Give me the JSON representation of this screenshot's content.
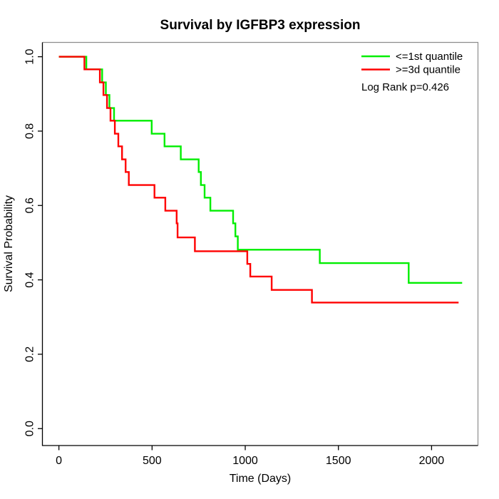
{
  "title": "Survival by IGFBP3 expression",
  "legend": {
    "items": [
      {
        "label": "<=1st quantile",
        "color": "#00EE00"
      },
      {
        "label": ">=3d quantile",
        "color": "#FF0000"
      }
    ],
    "stat_label": "Log Rank p=0.426"
  },
  "chart_data": {
    "type": "line",
    "subtype": "kaplan-meier-step-curve",
    "title": "Survival by IGFBP3 expression",
    "xlabel": "Time (Days)",
    "ylabel": "Survival Probability",
    "xlim": [
      -88.5,
      2249
    ],
    "ylim": [
      -0.0455,
      1.0385
    ],
    "x_ticks": {
      "values": [
        0,
        500,
        1000,
        1500,
        2000
      ],
      "labels": [
        "0",
        "500",
        "1000",
        "1500",
        "2000"
      ]
    },
    "y_ticks": {
      "values": [
        0,
        0.2,
        0.4,
        0.6,
        0.8,
        1
      ],
      "labels": [
        "0.0",
        "0.2",
        "0.4",
        "0.6",
        "0.8",
        "1.0"
      ]
    },
    "grid": false,
    "legend_position": "top-right",
    "annotation": "Log Rank p=0.426",
    "series": [
      {
        "name": "<=1st quantile",
        "color": "#00EE00",
        "start": [
          0,
          1.0
        ],
        "steps": [
          [
            147,
            0.966
          ],
          [
            232,
            0.931
          ],
          [
            252,
            0.897
          ],
          [
            271,
            0.862
          ],
          [
            296,
            0.828
          ],
          [
            498,
            0.793
          ],
          [
            567,
            0.759
          ],
          [
            654,
            0.724
          ],
          [
            750,
            0.69
          ],
          [
            762,
            0.655
          ],
          [
            782,
            0.621
          ],
          [
            813,
            0.586
          ],
          [
            935,
            0.552
          ],
          [
            947,
            0.517
          ],
          [
            960,
            0.481
          ],
          [
            1400,
            0.445
          ],
          [
            1877,
            0.392
          ]
        ],
        "end_time": 2164
      },
      {
        "name": ">=3d quantile",
        "color": "#FF0000",
        "start": [
          0,
          1.0
        ],
        "steps": [
          [
            137,
            0.966
          ],
          [
            220,
            0.931
          ],
          [
            239,
            0.897
          ],
          [
            258,
            0.862
          ],
          [
            277,
            0.828
          ],
          [
            300,
            0.793
          ],
          [
            319,
            0.759
          ],
          [
            339,
            0.724
          ],
          [
            358,
            0.69
          ],
          [
            375,
            0.655
          ],
          [
            513,
            0.621
          ],
          [
            571,
            0.586
          ],
          [
            632,
            0.552
          ],
          [
            637,
            0.514
          ],
          [
            730,
            0.477
          ],
          [
            1011,
            0.443
          ],
          [
            1027,
            0.409
          ],
          [
            1142,
            0.373
          ],
          [
            1358,
            0.339
          ]
        ],
        "end_time": 2145
      }
    ]
  }
}
